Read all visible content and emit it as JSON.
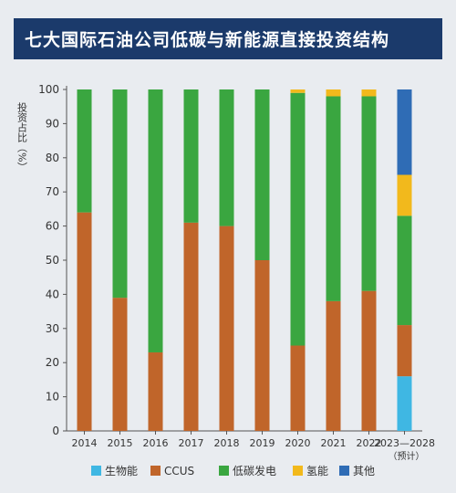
{
  "title": "七大国际石油公司低碳与新能源直接投资结构",
  "chart_data": {
    "type": "bar",
    "stacked": true,
    "categories": [
      "2014",
      "2015",
      "2016",
      "2017",
      "2018",
      "2019",
      "2020",
      "2021",
      "2022",
      "2023—2028"
    ],
    "category_note": "（预计）",
    "ylabel": "投资占比（%）",
    "ylim": [
      0,
      100
    ],
    "yticks": [
      0,
      10,
      20,
      30,
      40,
      50,
      60,
      70,
      80,
      90,
      100
    ],
    "legend_position": "bottom",
    "series": [
      {
        "name": "生物能",
        "color": "#3fb7e3",
        "values": [
          0,
          0,
          0,
          0,
          0,
          0,
          0,
          0,
          0,
          16
        ]
      },
      {
        "name": "CCUS",
        "color": "#c0652a",
        "values": [
          64,
          39,
          23,
          61,
          60,
          50,
          25,
          38,
          41,
          15
        ]
      },
      {
        "name": "低碳发电",
        "color": "#3aa640",
        "values": [
          36,
          61,
          77,
          39,
          40,
          50,
          74,
          60,
          57,
          32
        ]
      },
      {
        "name": "氢能",
        "color": "#f2b91c",
        "values": [
          0,
          0,
          0,
          0,
          0,
          0,
          1,
          2,
          2,
          12
        ]
      },
      {
        "name": "其他",
        "color": "#2f6cb5",
        "values": [
          0,
          0,
          0,
          0,
          0,
          0,
          0,
          0,
          0,
          25
        ]
      }
    ]
  }
}
